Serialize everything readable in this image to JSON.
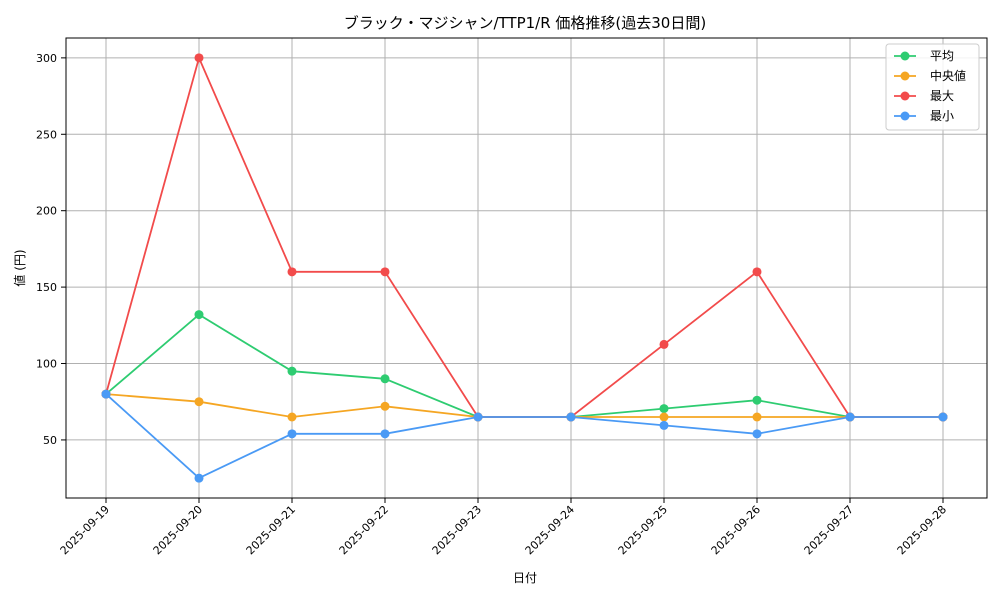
{
  "chart_data": {
    "type": "line",
    "title": "ブラック・マジシャン/TTP1/R 価格推移(過去30日間)",
    "xlabel": "日付",
    "ylabel": "値 (円)",
    "categories": [
      "2025-09-19",
      "2025-09-20",
      "2025-09-21",
      "2025-09-22",
      "2025-09-23",
      "2025-09-24",
      "2025-09-25",
      "2025-09-26",
      "2025-09-27",
      "2025-09-28"
    ],
    "ylim": [
      12,
      313
    ],
    "yticks": [
      50,
      100,
      150,
      200,
      250,
      300
    ],
    "ytick_labels": [
      "50",
      "100",
      "150",
      "200",
      "250",
      "300"
    ],
    "grid": true,
    "legend_position": "top-right",
    "series": [
      {
        "name": "平均",
        "color": "#2ecc71",
        "values": [
          80,
          132,
          95,
          90,
          65,
          65,
          70.5,
          76,
          65,
          65
        ]
      },
      {
        "name": "中央値",
        "color": "#f5a623",
        "values": [
          80,
          75,
          65,
          72,
          65,
          65,
          65,
          65,
          65,
          65
        ]
      },
      {
        "name": "最大",
        "color": "#f24b4b",
        "values": [
          80,
          300,
          160,
          160,
          65,
          65,
          112.5,
          160,
          65,
          65
        ]
      },
      {
        "name": "最小",
        "color": "#4a9af5",
        "values": [
          80,
          25,
          54,
          54,
          65,
          65,
          59.5,
          54,
          65,
          65
        ]
      }
    ]
  }
}
